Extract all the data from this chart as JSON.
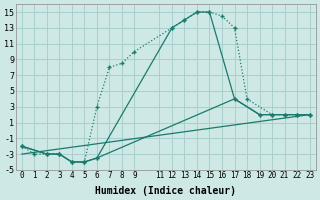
{
  "xlabel": "Humidex (Indice chaleur)",
  "bg_color": "#cde8e5",
  "grid_color": "#aacfcc",
  "line_color": "#1a7a6e",
  "xlim": [
    -0.5,
    23.5
  ],
  "ylim": [
    -5,
    16
  ],
  "xticks": [
    0,
    1,
    2,
    3,
    4,
    5,
    6,
    7,
    8,
    9,
    11,
    12,
    13,
    14,
    15,
    16,
    17,
    18,
    19,
    20,
    21,
    22,
    23
  ],
  "yticks": [
    -5,
    -3,
    -1,
    1,
    3,
    5,
    7,
    9,
    11,
    13,
    15
  ],
  "series1_x": [
    0,
    1,
    2,
    3,
    4,
    5,
    6,
    7,
    8,
    9,
    12,
    13,
    14,
    15,
    16,
    17,
    18,
    20,
    21,
    22,
    23
  ],
  "series1_y": [
    -2,
    -3,
    -3,
    -3,
    -4,
    -4,
    3,
    8,
    8.5,
    10,
    13,
    14,
    15,
    15,
    14.5,
    13,
    4,
    2,
    2,
    2,
    2
  ],
  "series2_x": [
    0,
    2,
    3,
    4,
    5,
    6,
    12,
    13,
    14,
    15,
    17,
    19,
    20,
    21,
    22,
    23
  ],
  "series2_y": [
    -2,
    -3,
    -3,
    -4,
    -4,
    -3.5,
    13,
    14,
    15,
    15,
    4,
    2,
    2,
    2,
    2,
    2
  ],
  "series3_x": [
    0,
    2,
    3,
    4,
    5,
    6,
    17,
    19,
    20,
    21,
    22,
    23
  ],
  "series3_y": [
    -2,
    -3,
    -3,
    -4,
    -4,
    -3.5,
    4,
    2,
    2,
    2,
    2,
    2
  ],
  "series4_x": [
    0,
    23
  ],
  "series4_y": [
    -3,
    2
  ]
}
